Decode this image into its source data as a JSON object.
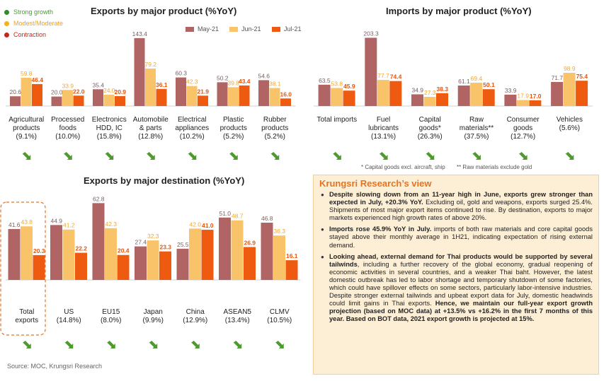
{
  "legend": {
    "status": [
      {
        "label": "Strong growth",
        "color": "#2e8b2e",
        "text_color": "#4a9a3a"
      },
      {
        "label": "Modest/Moderate",
        "color": "#f2b318",
        "text_color": "#555"
      },
      {
        "label": "Contraction",
        "color": "#c0281e",
        "text_color": "#555"
      }
    ],
    "series": [
      {
        "label": "May-21",
        "color": "#b06464"
      },
      {
        "label": "Jun-21",
        "color": "#f9c36a"
      },
      {
        "label": "Jul-21",
        "color": "#ee5a10"
      }
    ]
  },
  "chart_data": [
    {
      "type": "bar",
      "title": "Exports by major product (%YoY)",
      "categories": [
        [
          "Agricultural",
          "products",
          "(9.1%)"
        ],
        [
          "Processed",
          "foods",
          "(10.0%)"
        ],
        [
          "Electronics",
          "HDD, IC",
          "(15.8%)"
        ],
        [
          "Automobile",
          "& parts",
          "(12.8%)"
        ],
        [
          "Electrical",
          "appliances",
          "(10.2%)"
        ],
        [
          "Plastic",
          "products",
          "(5.2%)"
        ],
        [
          "Rubber",
          "products",
          "(5.2%)"
        ]
      ],
      "series": [
        {
          "name": "May-21",
          "values": [
            20.6,
            20.0,
            35.4,
            143.4,
            60.3,
            50.2,
            54.6
          ]
        },
        {
          "name": "Jun-21",
          "values": [
            59.8,
            33.9,
            24.0,
            79.2,
            42.3,
            39.8,
            38.1
          ]
        },
        {
          "name": "Jul-21",
          "values": [
            46.4,
            22.0,
            20.9,
            36.1,
            21.9,
            43.4,
            16.0
          ]
        }
      ],
      "status": [
        "strong",
        "strong",
        "strong",
        "strong",
        "strong",
        "strong",
        "strong"
      ]
    },
    {
      "type": "bar",
      "title": "Imports by major product (%YoY)",
      "categories": [
        [
          "Total imports"
        ],
        [
          "Fuel",
          "lubricants",
          "(13.1%)"
        ],
        [
          "Capital",
          "goods*",
          "(26.3%)"
        ],
        [
          "Raw",
          "materials**",
          "(37.5%)"
        ],
        [
          "Consumer",
          "goods",
          "(12.7%)"
        ],
        [
          "Vehicles",
          "(5.6%)"
        ]
      ],
      "series": [
        {
          "name": "May-21",
          "values": [
            63.5,
            203.3,
            34.9,
            61.1,
            33.9,
            71.7
          ]
        },
        {
          "name": "Jun-21",
          "values": [
            53.8,
            77.7,
            27.3,
            69.4,
            17.9,
            98.9
          ]
        },
        {
          "name": "Jul-21",
          "values": [
            45.9,
            74.4,
            38.3,
            50.1,
            17.0,
            75.4
          ]
        }
      ],
      "status": [
        "strong",
        "strong",
        "strong",
        "strong",
        "strong",
        "strong"
      ]
    },
    {
      "type": "bar",
      "title": "Exports by major destination (%YoY)",
      "categories": [
        [
          "Total",
          "exports"
        ],
        [
          "US",
          "(14.8%)"
        ],
        [
          "EU15",
          "(8.0%)"
        ],
        [
          "Japan",
          "(9.9%)"
        ],
        [
          "China",
          "(12.9%)"
        ],
        [
          "ASEAN5",
          "(13.4%)"
        ],
        [
          "CLMV",
          "(10.5%)"
        ]
      ],
      "series": [
        {
          "name": "May-21",
          "values": [
            41.6,
            44.9,
            62.8,
            27.4,
            25.5,
            51.0,
            46.8
          ]
        },
        {
          "name": "Jun-21",
          "values": [
            43.8,
            41.2,
            42.3,
            32.3,
            42.0,
            48.7,
            36.3
          ]
        },
        {
          "name": "Jul-21",
          "values": [
            20.3,
            22.2,
            20.4,
            23.3,
            41.0,
            26.9,
            16.1
          ]
        }
      ],
      "status": [
        "strong",
        "strong",
        "strong",
        "strong",
        "strong",
        "strong",
        "strong"
      ]
    }
  ],
  "notes": [
    "* Capital goods excl. aircraft, ship",
    "** Raw materials exclude gold"
  ],
  "source": "Source: MOC, Krungsri Research",
  "view": {
    "title": "Krungsri Research’s view",
    "items": [
      {
        "bold": "Despite slowing down from an 11-year high in June, exports grew stronger than expected in July, +20.3% YoY.",
        "rest": " Excluding oil, gold and weapons, exports surged 25.4%. Shipments of most major export items continued to rise. By destination, exports to major markets experienced high growth rates of above 20%."
      },
      {
        "bold": "Imports rose 45.9% YoY in July.",
        "rest": " imports of both raw materials and core capital goods stayed above their monthly average in 1H21, indicating expectation of rising external demand."
      },
      {
        "bold": "Looking ahead, external demand for Thai products would be supported by several tailwinds",
        "rest": ", including a further recovery of the global economy, gradual reopening of economic activities in several countries, and a weaker Thai baht. However, the latest domestic outbreak has led to labor shortage and temporary shutdown of some factories, which could have spillover effects on some sectors, particularly labor-intensive industries. Despite stronger external tailwinds and upbeat export data for July, domestic headwinds could limit gains in Thai exports. ",
        "bold2": "Hence, we maintain our full-year export growth projection (based on MOC data) at +13.5% vs +16.2% in the first 7 months of this year. Based on BOT data, 2021 export growth is projected at 15%."
      }
    ]
  }
}
